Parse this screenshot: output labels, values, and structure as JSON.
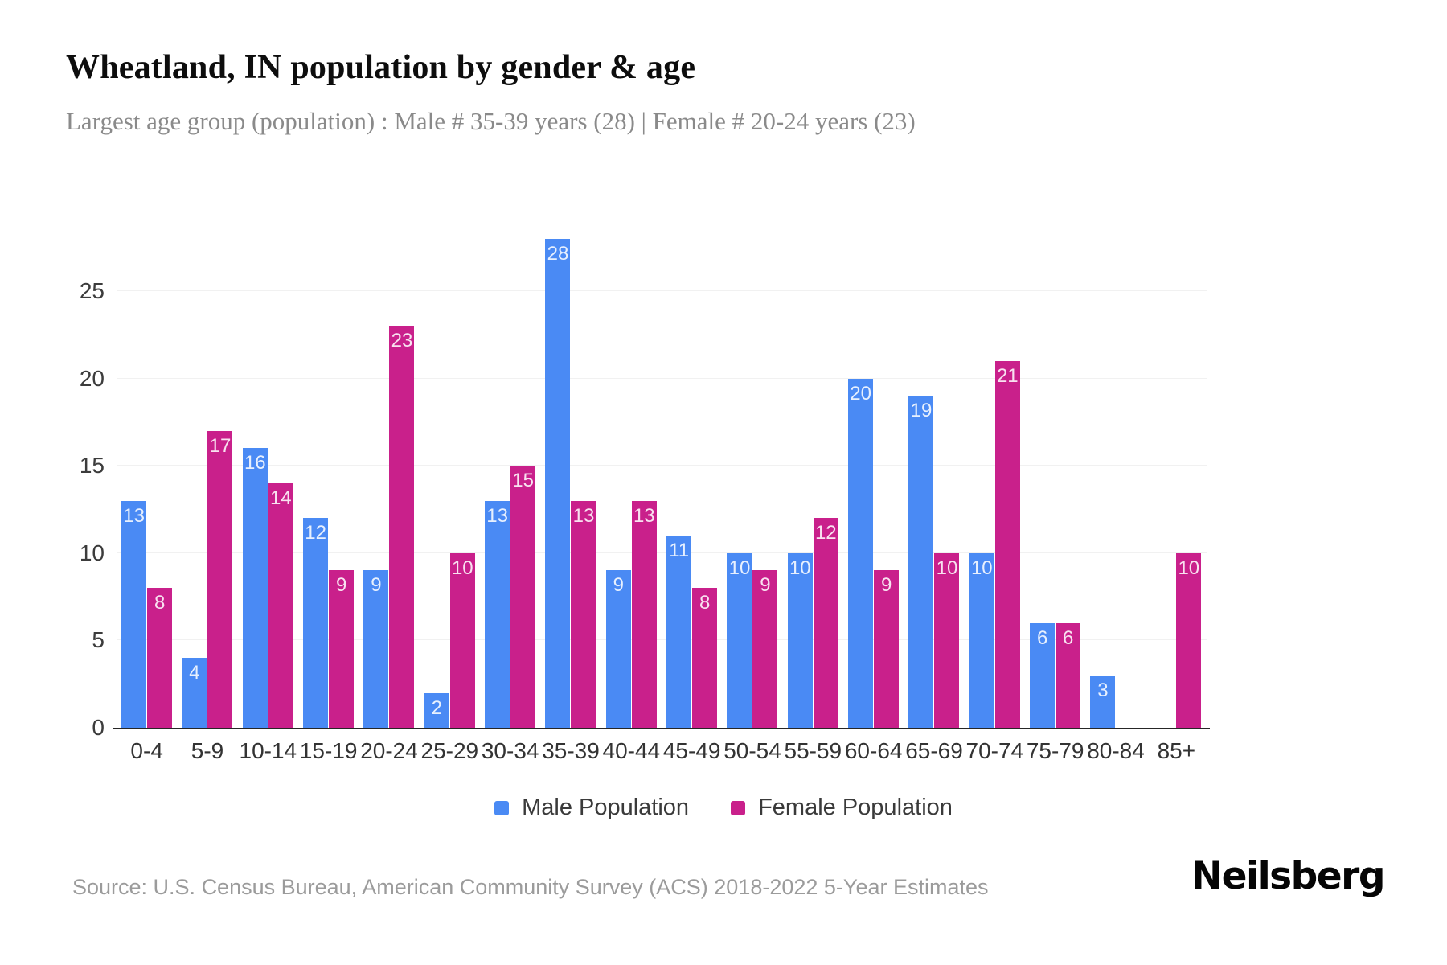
{
  "title": "Wheatland, IN population by gender & age",
  "subtitle": "Largest age group (population) : Male # 35-39 years (28) | Female # 20-24 years (23)",
  "source": "Source: U.S. Census Bureau, American Community Survey (ACS) 2018-2022 5-Year Estimates",
  "brand": "Neilsberg",
  "colors": {
    "male": "#4a8af4",
    "female": "#c9208b",
    "grid": "#f1f1f1",
    "axis_line": "#262626",
    "bar_label": "rgba(255,255,255,0.87)",
    "tick_text": "#3c3c3c",
    "subtitle_text": "#8a8a8a",
    "source_text": "#9b9b9b"
  },
  "chart_data": {
    "type": "bar",
    "categories": [
      "0-4",
      "5-9",
      "10-14",
      "15-19",
      "20-24",
      "25-29",
      "30-34",
      "35-39",
      "40-44",
      "45-49",
      "50-54",
      "55-59",
      "60-64",
      "65-69",
      "70-74",
      "75-79",
      "80-84",
      "85+"
    ],
    "series": [
      {
        "name": "Male Population",
        "color_key": "male",
        "values": [
          13,
          4,
          16,
          12,
          9,
          2,
          13,
          28,
          9,
          11,
          10,
          10,
          20,
          19,
          10,
          6,
          3,
          0
        ]
      },
      {
        "name": "Female Population",
        "color_key": "female",
        "values": [
          8,
          17,
          14,
          9,
          23,
          10,
          15,
          13,
          13,
          8,
          9,
          12,
          9,
          10,
          21,
          6,
          0,
          10
        ]
      }
    ],
    "title": "Wheatland, IN population by gender & age",
    "xlabel": "",
    "ylabel": "",
    "yticks": [
      0,
      5,
      10,
      15,
      20,
      25
    ],
    "ylim": [
      0,
      29
    ],
    "grid": true,
    "legend_position": "bottom",
    "bar_labels_shown": true
  }
}
